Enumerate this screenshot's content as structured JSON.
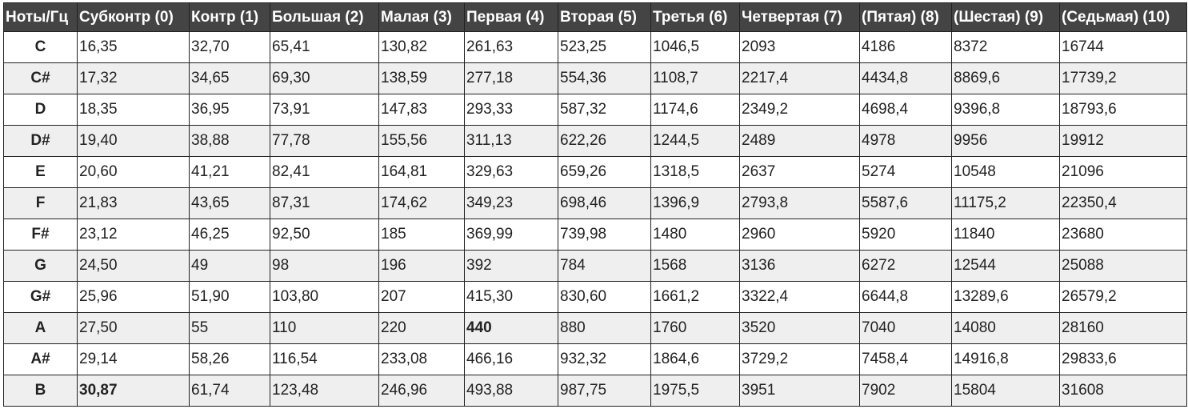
{
  "table": {
    "headers": [
      "Ноты/Гц",
      "Субконтр (0)",
      "Контр (1)",
      "Большая (2)",
      "Малая (3)",
      "Первая (4)",
      "Вторая (5)",
      "Третья (6)",
      "Четвертая (7)",
      "(Пятая) (8)",
      "(Шестая) (9)",
      "(Седьмая) (10)"
    ],
    "rows": [
      [
        "C",
        "16,35",
        "32,70",
        "65,41",
        "130,82",
        "261,63",
        "523,25",
        "1046,5",
        "2093",
        "4186",
        "8372",
        "16744"
      ],
      [
        "C#",
        "17,32",
        "34,65",
        "69,30",
        "138,59",
        "277,18",
        "554,36",
        "1108,7",
        "2217,4",
        "4434,8",
        "8869,6",
        "17739,2"
      ],
      [
        "D",
        "18,35",
        "36,95",
        "73,91",
        "147,83",
        "293,33",
        "587,32",
        "1174,6",
        "2349,2",
        "4698,4",
        "9396,8",
        "18793,6"
      ],
      [
        "D#",
        "19,40",
        "38,88",
        "77,78",
        "155,56",
        "311,13",
        "622,26",
        "1244,5",
        "2489",
        "4978",
        "9956",
        "19912"
      ],
      [
        "E",
        "20,60",
        "41,21",
        "82,41",
        "164,81",
        "329,63",
        "659,26",
        "1318,5",
        "2637",
        "5274",
        "10548",
        "21096"
      ],
      [
        "F",
        "21,83",
        "43,65",
        "87,31",
        "174,62",
        "349,23",
        "698,46",
        "1396,9",
        "2793,8",
        "5587,6",
        "11175,2",
        "22350,4"
      ],
      [
        "F#",
        "23,12",
        "46,25",
        "92,50",
        "185",
        "369,99",
        "739,98",
        "1480",
        "2960",
        "5920",
        "11840",
        "23680"
      ],
      [
        "G",
        "24,50",
        "49",
        "98",
        "196",
        "392",
        "784",
        "1568",
        "3136",
        "6272",
        "12544",
        "25088"
      ],
      [
        "G#",
        "25,96",
        "51,90",
        "103,80",
        "207",
        "415,30",
        "830,60",
        "1661,2",
        "3322,4",
        "6644,8",
        "13289,6",
        "26579,2"
      ],
      [
        "A",
        "27,50",
        "55",
        "110",
        "220",
        "440",
        "880",
        "1760",
        "3520",
        "7040",
        "14080",
        "28160"
      ],
      [
        "A#",
        "29,14",
        "58,26",
        "116,54",
        "233,08",
        "466,16",
        "932,32",
        "1864,6",
        "3729,2",
        "7458,4",
        "14916,8",
        "29833,6"
      ],
      [
        "B",
        "30,87",
        "61,74",
        "123,48",
        "246,96",
        "493,88",
        "987,75",
        "1975,5",
        "3951",
        "7902",
        "15804",
        "31608"
      ]
    ],
    "bold_cells": [
      [
        9,
        5
      ],
      [
        11,
        1
      ]
    ]
  },
  "colors": {
    "header_bg": "#444444",
    "header_text": "#ffffff",
    "alt_row_bg": "#efefef",
    "border": "#222222"
  }
}
